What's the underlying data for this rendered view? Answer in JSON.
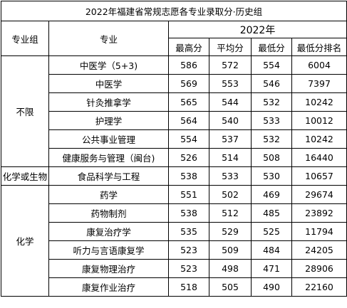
{
  "title": "2022年福建省常规志愿各专业录取分·历史组",
  "headers": {
    "group": "专业组",
    "major": "专业",
    "year": "2022年",
    "max": "最高分",
    "avg": "平均分",
    "min": "最低分",
    "rank": "最低分排名"
  },
  "groups": [
    {
      "name": "不限",
      "rows": [
        {
          "major": "中医学（5+3)",
          "max": "586",
          "avg": "572",
          "min": "554",
          "rank": "6004"
        },
        {
          "major": "中医学",
          "max": "569",
          "avg": "553",
          "min": "546",
          "rank": "7397"
        },
        {
          "major": "针灸推拿学",
          "max": "565",
          "avg": "544",
          "min": "532",
          "rank": "10242"
        },
        {
          "major": "护理学",
          "max": "564",
          "avg": "540",
          "min": "533",
          "rank": "10012"
        },
        {
          "major": "公共事业管理",
          "max": "554",
          "avg": "537",
          "min": "532",
          "rank": "10242"
        },
        {
          "major": "健康服务与管理（闽台)",
          "max": "526",
          "avg": "514",
          "min": "508",
          "rank": "16440"
        }
      ]
    },
    {
      "name": "化学或生物",
      "rows": [
        {
          "major": "食品科学与工程",
          "max": "538",
          "avg": "533",
          "min": "530",
          "rank": "10657"
        }
      ]
    },
    {
      "name": "化学",
      "rows": [
        {
          "major": "药学",
          "max": "551",
          "avg": "502",
          "min": "469",
          "rank": "29674"
        },
        {
          "major": "药物制剂",
          "max": "538",
          "avg": "512",
          "min": "485",
          "rank": "23892"
        },
        {
          "major": "康复治疗学",
          "max": "535",
          "avg": "529",
          "min": "525",
          "rank": "11794"
        },
        {
          "major": "听力与言语康复学",
          "max": "523",
          "avg": "509",
          "min": "484",
          "rank": "24205"
        },
        {
          "major": "康复物理治疗",
          "max": "523",
          "avg": "498",
          "min": "471",
          "rank": "28906"
        },
        {
          "major": "康复作业治疗",
          "max": "518",
          "avg": "505",
          "min": "490",
          "rank": "22160"
        }
      ]
    }
  ]
}
